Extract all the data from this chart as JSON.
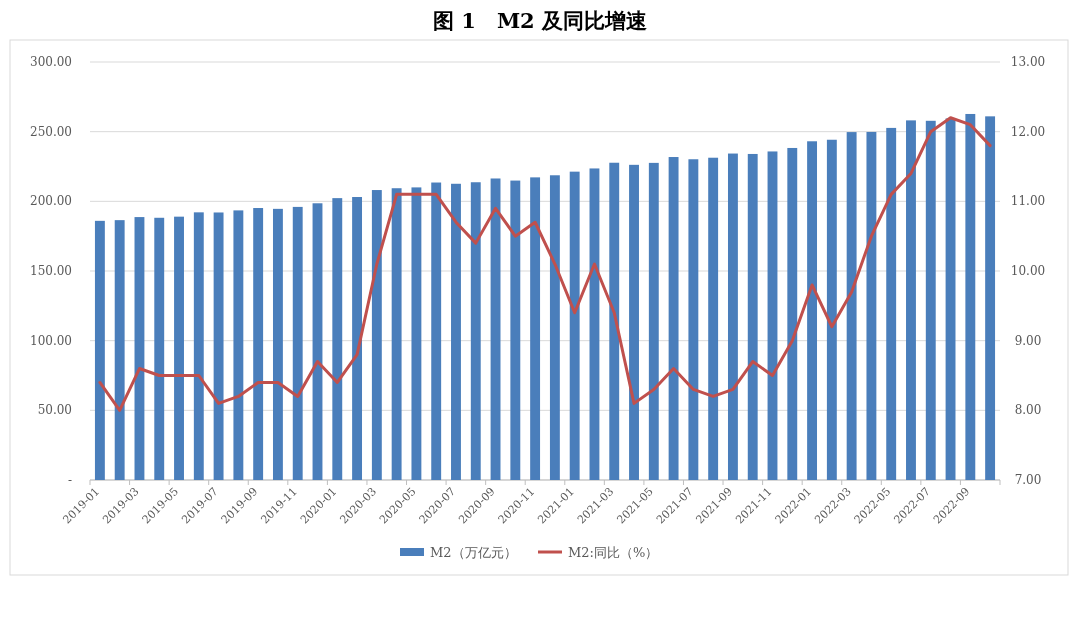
{
  "chart_data": {
    "type": "bar",
    "title": "图 1　M2 及同比增速",
    "categories": [
      "2019-01",
      null,
      "2019-03",
      null,
      "2019-05",
      null,
      "2019-07",
      null,
      "2019-09",
      null,
      "2019-11",
      null,
      "2020-01",
      null,
      "2020-03",
      null,
      "2020-05",
      null,
      "2020-07",
      null,
      "2020-09",
      null,
      "2020-11",
      null,
      "2021-01",
      null,
      "2021-03",
      null,
      "2021-05",
      null,
      "2021-07",
      null,
      "2021-09",
      null,
      "2021-11",
      null,
      "2022-01",
      null,
      "2022-03",
      null,
      "2022-05",
      null,
      "2022-07",
      null,
      "2022-09",
      null
    ],
    "series": [
      {
        "name": "M2（万亿元）",
        "color": "#4a7ebb",
        "values": [
          186.0,
          186.5,
          188.7,
          188.2,
          189.0,
          192.1,
          192.0,
          193.5,
          195.2,
          194.6,
          196.0,
          198.6,
          202.3,
          203.1,
          208.1,
          209.4,
          210.0,
          213.5,
          212.6,
          213.7,
          216.4,
          214.9,
          217.2,
          218.7,
          221.3,
          223.6,
          227.7,
          226.2,
          227.6,
          231.8,
          230.2,
          231.3,
          234.3,
          234.0,
          235.8,
          238.3,
          243.1,
          244.2,
          249.7,
          249.8,
          252.7,
          258.1,
          257.8,
          259.5,
          262.7,
          261.0
        ]
      },
      {
        "name": "M2:同比（%）",
        "type": "line",
        "axis": "y2",
        "color": "#c0504d",
        "values": [
          8.4,
          8.0,
          8.6,
          8.5,
          8.5,
          8.5,
          8.1,
          8.2,
          8.4,
          8.4,
          8.2,
          8.7,
          8.4,
          8.8,
          10.1,
          11.1,
          11.1,
          11.1,
          10.7,
          10.4,
          10.9,
          10.5,
          10.7,
          10.1,
          9.4,
          10.1,
          9.4,
          8.1,
          8.3,
          8.6,
          8.3,
          8.2,
          8.3,
          8.7,
          8.5,
          9.0,
          9.8,
          9.2,
          9.7,
          10.5,
          11.1,
          11.4,
          12.0,
          12.2,
          12.1,
          11.8
        ]
      }
    ],
    "ylim": [
      0,
      300
    ],
    "yticks": [
      {
        "value": 0,
        "label": "-"
      },
      {
        "value": 50,
        "label": "50.00"
      },
      {
        "value": 100,
        "label": "100.00"
      },
      {
        "value": 150,
        "label": "150.00"
      },
      {
        "value": 200,
        "label": "200.00"
      },
      {
        "value": 250,
        "label": "250.00"
      },
      {
        "value": 300,
        "label": "300.00"
      }
    ],
    "y2lim": [
      7,
      13
    ],
    "y2ticks": [
      {
        "value": 7,
        "label": "7.00"
      },
      {
        "value": 8,
        "label": "8.00"
      },
      {
        "value": 9,
        "label": "9.00"
      },
      {
        "value": 10,
        "label": "10.00"
      },
      {
        "value": 11,
        "label": "11.00"
      },
      {
        "value": 12,
        "label": "12.00"
      },
      {
        "value": 13,
        "label": "13.00"
      }
    ],
    "grid": "y",
    "legend": "bottom"
  }
}
